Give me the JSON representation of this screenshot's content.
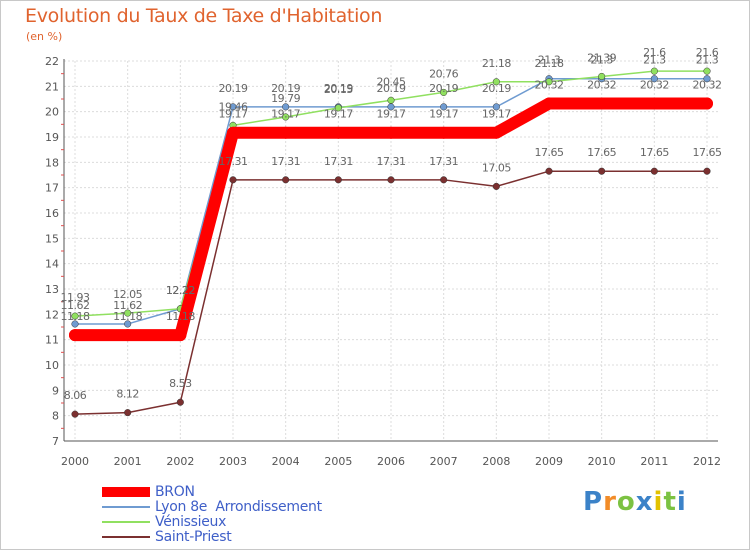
{
  "chart_data": {
    "type": "line",
    "title": "Evolution du Taux de Taxe d'Habitation",
    "ylabel": "(en %)",
    "xlabel": "",
    "categories": [
      "2000",
      "2001",
      "2002",
      "2003",
      "2004",
      "2005",
      "2006",
      "2007",
      "2008",
      "2009",
      "2010",
      "2011",
      "2012"
    ],
    "ylim": [
      7,
      22
    ],
    "yticks": [
      "7",
      "8",
      "9",
      "10",
      "11",
      "12",
      "13",
      "14",
      "15",
      "16",
      "17",
      "18",
      "19",
      "20",
      "21",
      "22"
    ],
    "grid": true,
    "legend_position": "bottom-left",
    "series": [
      {
        "name": "BRON",
        "color": "#ff0000",
        "values": [
          11.18,
          11.18,
          11.18,
          19.17,
          19.17,
          19.17,
          19.17,
          19.17,
          19.17,
          20.32,
          20.32,
          20.32,
          20.32
        ],
        "labels": [
          "11.18",
          "11.18",
          "11.18",
          "19.17",
          "19.17",
          "19.17",
          "19.17",
          "19.17",
          "19.17",
          "20.32",
          "20.32",
          "20.32",
          "20.32"
        ]
      },
      {
        "name": "Lyon 8e  Arrondissement",
        "color": "#6f9bd1",
        "values": [
          11.62,
          11.62,
          12.22,
          20.19,
          20.19,
          20.19,
          20.19,
          20.19,
          20.19,
          21.3,
          21.3,
          21.3,
          21.3
        ],
        "labels": [
          "11.62",
          "11.62",
          "12.22",
          "20.19",
          "20.19",
          "20.19",
          "20.19",
          "20.19",
          "20.19",
          "21.3",
          "21.3",
          "21.3",
          "21.3"
        ]
      },
      {
        "name": "Vénissieux",
        "color": "#90e060",
        "values": [
          11.93,
          12.05,
          12.22,
          19.46,
          19.79,
          20.15,
          20.45,
          20.76,
          21.18,
          21.18,
          21.39,
          21.6,
          21.6
        ],
        "labels": [
          "11.93",
          "12.05",
          "12.22",
          "19.46",
          "19.79",
          "20.15",
          "20.45",
          "20.76",
          "21.18",
          "21.18",
          "21.39",
          "21.6",
          "21.6"
        ]
      },
      {
        "name": "Saint-Priest",
        "color": "#7b3030",
        "values": [
          8.06,
          8.12,
          8.53,
          17.31,
          17.31,
          17.31,
          17.31,
          17.31,
          17.05,
          17.65,
          17.65,
          17.65,
          17.65
        ],
        "labels": [
          "8.06",
          "8.12",
          "8.53",
          "17.31",
          "17.31",
          "17.31",
          "17.31",
          "17.31",
          "17.05",
          "17.65",
          "17.65",
          "17.65",
          "17.65"
        ]
      }
    ]
  },
  "brand": {
    "letters": [
      "P",
      "r",
      "o",
      "x",
      "i",
      "t",
      "i"
    ],
    "colors": [
      "#3b82c8",
      "#f28c28",
      "#7cc242",
      "#3b82c8",
      "#e2c200",
      "#7cc242",
      "#3b82c8"
    ]
  }
}
